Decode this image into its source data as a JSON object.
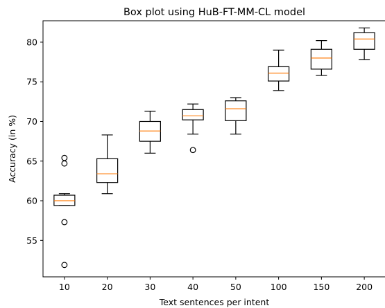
{
  "chart_data": {
    "type": "box",
    "title": "Box plot using HuB-FT-MM-CL model",
    "xlabel": "Text sentences per intent",
    "ylabel": "Accuracy (in %)",
    "ylim": [
      50.4,
      82.7
    ],
    "yticks": [
      55,
      60,
      65,
      70,
      75,
      80
    ],
    "categories": [
      "10",
      "20",
      "30",
      "40",
      "50",
      "100",
      "150",
      "200"
    ],
    "boxes": [
      {
        "category": "10",
        "whisker_low": 59.4,
        "q1": 59.4,
        "median": 60.0,
        "q3": 60.7,
        "whisker_high": 60.9,
        "outliers": [
          65.4,
          64.7,
          57.3,
          51.9
        ]
      },
      {
        "category": "20",
        "whisker_low": 60.9,
        "q1": 62.3,
        "median": 63.4,
        "q3": 65.3,
        "whisker_high": 68.3,
        "outliers": []
      },
      {
        "category": "30",
        "whisker_low": 66.0,
        "q1": 67.5,
        "median": 68.8,
        "q3": 70.0,
        "whisker_high": 71.3,
        "outliers": []
      },
      {
        "category": "40",
        "whisker_low": 68.4,
        "q1": 70.2,
        "median": 70.7,
        "q3": 71.5,
        "whisker_high": 72.2,
        "outliers": [
          66.4
        ]
      },
      {
        "category": "50",
        "whisker_low": 68.4,
        "q1": 70.1,
        "median": 71.6,
        "q3": 72.6,
        "whisker_high": 73.0,
        "outliers": []
      },
      {
        "category": "100",
        "whisker_low": 73.9,
        "q1": 75.1,
        "median": 76.1,
        "q3": 76.9,
        "whisker_high": 79.0,
        "outliers": []
      },
      {
        "category": "150",
        "whisker_low": 75.8,
        "q1": 76.6,
        "median": 78.0,
        "q3": 79.1,
        "whisker_high": 80.2,
        "outliers": []
      },
      {
        "category": "200",
        "whisker_low": 77.8,
        "q1": 79.1,
        "median": 80.4,
        "q3": 81.2,
        "whisker_high": 81.8,
        "outliers": []
      }
    ],
    "colors": {
      "box": "#000000",
      "median": "#ff7f0e"
    },
    "grid": false,
    "legend": "none"
  }
}
